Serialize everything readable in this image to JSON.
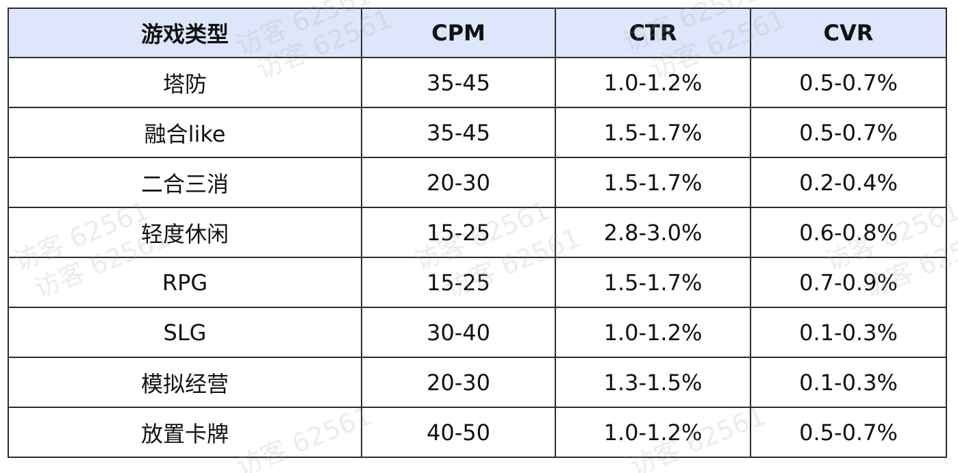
{
  "table": {
    "headers": [
      "游戏类型",
      "CPM",
      "CTR",
      "CVR"
    ],
    "rows": [
      [
        "塔防",
        "35-45",
        "1.0-1.2%",
        "0.5-0.7%"
      ],
      [
        "融合like",
        "35-45",
        "1.5-1.7%",
        "0.5-0.7%"
      ],
      [
        "二合三消",
        "20-30",
        "1.5-1.7%",
        "0.2-0.4%"
      ],
      [
        "轻度休闲",
        "15-25",
        "2.8-3.0%",
        "0.6-0.8%"
      ],
      [
        "RPG",
        "15-25",
        "1.5-1.7%",
        "0.7-0.9%"
      ],
      [
        "SLG",
        "30-40",
        "1.0-1.2%",
        "0.1-0.3%"
      ],
      [
        "模拟经营",
        "20-30",
        "1.3-1.5%",
        "0.1-0.3%"
      ],
      [
        "放置卡牌",
        "40-50",
        "1.0-1.2%",
        "0.5-0.7%"
      ]
    ]
  },
  "watermark": {
    "text": "访客 62561"
  },
  "colors": {
    "header_bg": "#dde6fb",
    "border": "#2b2b2b",
    "text": "#111111"
  }
}
